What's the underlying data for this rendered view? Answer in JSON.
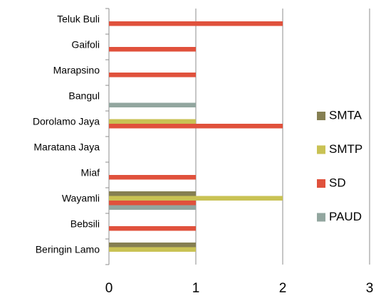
{
  "chart_data": {
    "type": "bar",
    "orientation": "horizontal",
    "categories": [
      "Teluk Buli",
      "Gaifoli",
      "Marapsino",
      "Bangul",
      "Dorolamo Jaya",
      "Maratana Jaya",
      "Miaf",
      "Wayamli",
      "Bebsili",
      "Beringin Lamo"
    ],
    "series": [
      {
        "name": "SMTA",
        "color": "#857f52",
        "values": [
          0,
          0,
          0,
          0,
          0,
          0,
          0,
          1,
          0,
          1
        ]
      },
      {
        "name": "SMTP",
        "color": "#c9c254",
        "values": [
          0,
          0,
          0,
          0,
          1,
          0,
          0,
          2,
          0,
          1
        ]
      },
      {
        "name": "SD",
        "color": "#e0513c",
        "values": [
          2,
          1,
          1,
          0,
          2,
          0,
          1,
          1,
          1,
          0
        ]
      },
      {
        "name": "PAUD",
        "color": "#92a69f",
        "values": [
          0,
          0,
          0,
          1,
          0,
          0,
          0,
          1,
          0,
          0
        ]
      }
    ],
    "xlim": [
      0,
      3
    ],
    "xticks": [
      0,
      1,
      2,
      3
    ],
    "grid": true,
    "legend": "right"
  }
}
